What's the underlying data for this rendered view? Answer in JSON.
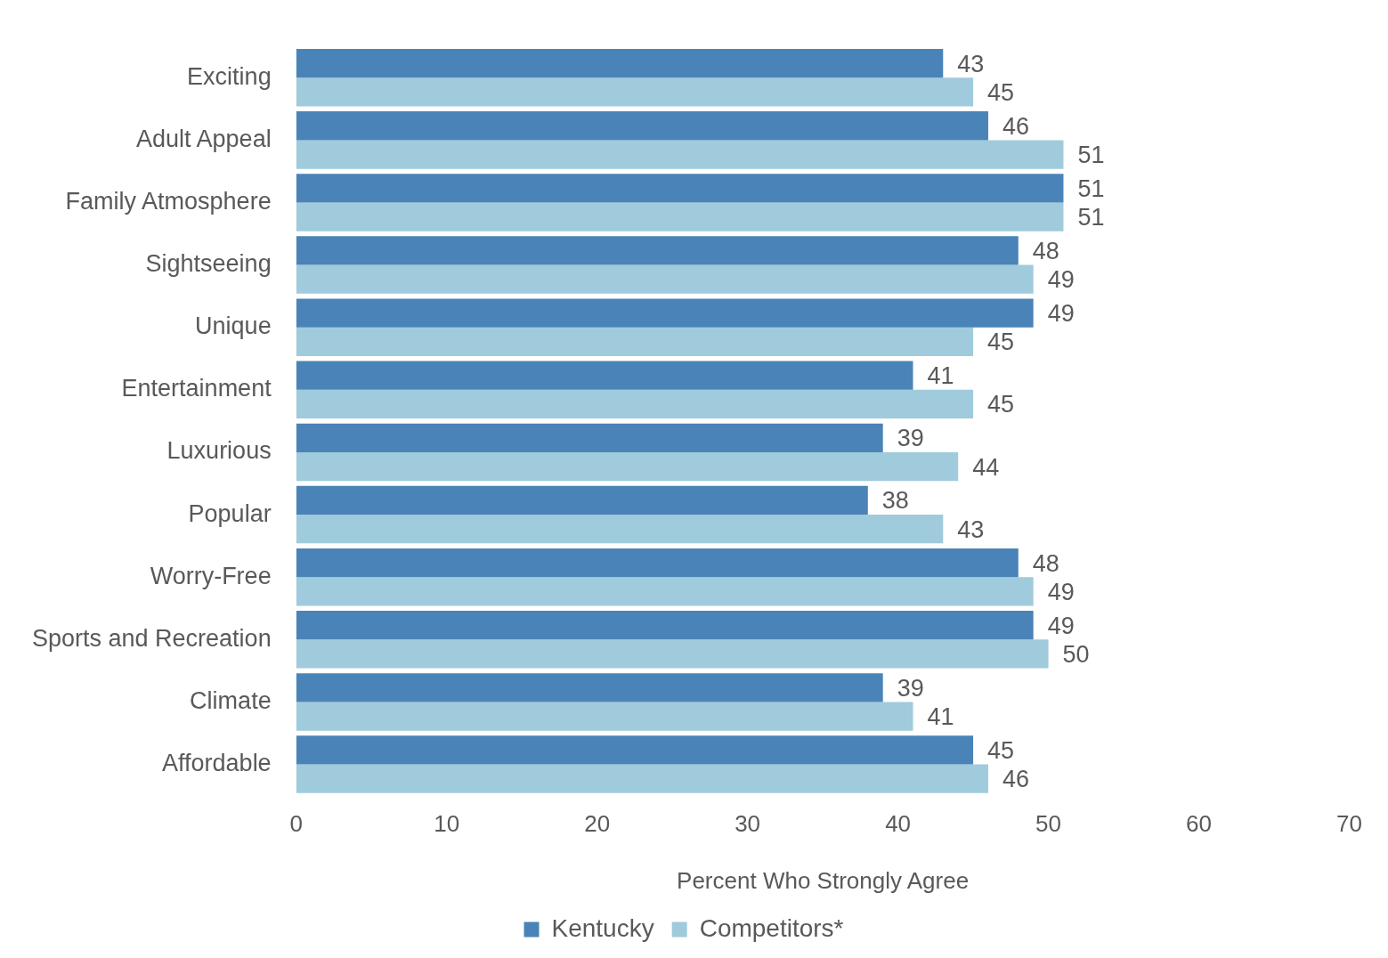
{
  "chart_data": {
    "type": "bar",
    "orientation": "horizontal",
    "xlabel": "Percent Who Strongly Agree",
    "categories": [
      "Exciting",
      "Adult Appeal",
      "Family Atmosphere",
      "Sightseeing",
      "Unique",
      "Entertainment",
      "Luxurious",
      "Popular",
      "Worry-Free",
      "Sports and Recreation",
      "Climate",
      "Affordable"
    ],
    "series": [
      {
        "name": "Kentucky",
        "color": "#4a83b7",
        "values": [
          43,
          46,
          51,
          48,
          49,
          41,
          39,
          38,
          48,
          49,
          39,
          45
        ]
      },
      {
        "name": "Competitors*",
        "color": "#9fcbdc",
        "values": [
          45,
          51,
          51,
          49,
          45,
          45,
          44,
          43,
          49,
          50,
          41,
          46
        ]
      }
    ],
    "xlim": [
      0,
      70
    ],
    "xticks": [
      0,
      10,
      20,
      30,
      40,
      50,
      60,
      70
    ],
    "data_labels": true,
    "grid": false,
    "legend": "bottom"
  }
}
